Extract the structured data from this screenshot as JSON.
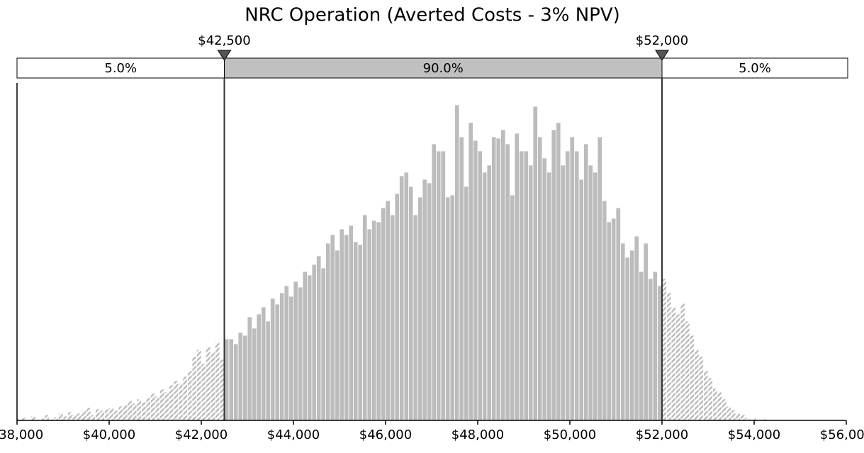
{
  "chart_data": {
    "type": "histogram",
    "title": "NRC Operation (Averted Costs - 3% NPV)",
    "bins": [
      38000,
      38100,
      38200,
      38300,
      38400,
      38500,
      38600,
      38700,
      38800,
      38900,
      39000,
      39100,
      39200,
      39300,
      39400,
      39500,
      39600,
      39700,
      39800,
      39900,
      40000,
      40100,
      40200,
      40300,
      40400,
      40500,
      40600,
      40700,
      40800,
      40900,
      41000,
      41100,
      41200,
      41300,
      41400,
      41500,
      41600,
      41700,
      41800,
      41900,
      42000,
      42100,
      42200,
      42300,
      42400,
      42500,
      42600,
      42700,
      42800,
      42900,
      43000,
      43100,
      43200,
      43300,
      43400,
      43500,
      43600,
      43700,
      43800,
      43900,
      44000,
      44100,
      44200,
      44300,
      44400,
      44500,
      44600,
      44700,
      44800,
      44900,
      45000,
      45100,
      45200,
      45300,
      45400,
      45500,
      45600,
      45700,
      45800,
      45900,
      46000,
      46100,
      46200,
      46300,
      46400,
      46500,
      46600,
      46700,
      46800,
      46900,
      47000,
      47100,
      47200,
      47300,
      47400,
      47500,
      47600,
      47700,
      47800,
      47900,
      48000,
      48100,
      48200,
      48300,
      48400,
      48500,
      48600,
      48700,
      48800,
      48900,
      49000,
      49100,
      49200,
      49300,
      49400,
      49500,
      49600,
      49700,
      49800,
      49900,
      50000,
      50100,
      50200,
      50300,
      50400,
      50500,
      50600,
      50700,
      50800,
      50900,
      51000,
      51100,
      51200,
      51300,
      51400,
      51500,
      51600,
      51700,
      51800,
      51900,
      52000,
      52100,
      52200,
      52300,
      52400,
      52500,
      52600,
      52700,
      52800,
      52900,
      53000,
      53100,
      53200,
      53300,
      53400,
      53500,
      53600,
      53700,
      53800,
      53900,
      54000,
      54100,
      54200,
      54300
    ],
    "counts": [
      2,
      4,
      1,
      6,
      0,
      3,
      8,
      2,
      5,
      10,
      6,
      12,
      8,
      10,
      14,
      18,
      8,
      16,
      14,
      16,
      18,
      14,
      20,
      22,
      28,
      24,
      30,
      26,
      32,
      38,
      34,
      44,
      40,
      50,
      56,
      52,
      62,
      70,
      90,
      100,
      80,
      104,
      96,
      110,
      86,
      115,
      115,
      108,
      124,
      120,
      146,
      130,
      150,
      160,
      140,
      172,
      164,
      180,
      190,
      175,
      196,
      188,
      210,
      205,
      220,
      232,
      215,
      250,
      262,
      240,
      270,
      262,
      275,
      252,
      248,
      290,
      270,
      282,
      280,
      300,
      310,
      290,
      320,
      345,
      350,
      330,
      290,
      315,
      340,
      335,
      390,
      380,
      380,
      315,
      318,
      445,
      400,
      330,
      420,
      395,
      380,
      350,
      360,
      400,
      398,
      410,
      390,
      318,
      405,
      380,
      380,
      360,
      443,
      400,
      370,
      350,
      410,
      420,
      360,
      380,
      400,
      380,
      340,
      390,
      360,
      350,
      400,
      310,
      280,
      285,
      300,
      250,
      230,
      240,
      260,
      210,
      250,
      200,
      210,
      190,
      200,
      180,
      160,
      150,
      165,
      140,
      120,
      100,
      90,
      70,
      60,
      45,
      40,
      30,
      20,
      15,
      10,
      8,
      4,
      2,
      3,
      1,
      2
    ],
    "color": "#bcbcbc",
    "xlim": [
      38000,
      56000
    ],
    "ylim": [
      0,
      476
    ],
    "xticks": [
      {
        "value": 38000,
        "label": "$38,000"
      },
      {
        "value": 40000,
        "label": "$40,000"
      },
      {
        "value": 42000,
        "label": "$42,000"
      },
      {
        "value": 44000,
        "label": "$44,000"
      },
      {
        "value": 46000,
        "label": "$46,000"
      },
      {
        "value": 48000,
        "label": "$48,000"
      },
      {
        "value": 50000,
        "label": "$50,000"
      },
      {
        "value": 52000,
        "label": "$52,000"
      },
      {
        "value": 54000,
        "label": "$54,000"
      },
      {
        "value": 56000,
        "label": "$56,000"
      }
    ],
    "delimiters": [
      {
        "value": 42500,
        "label": "$42,500"
      },
      {
        "value": 52000,
        "label": "$52,000"
      }
    ],
    "regions": [
      {
        "value": 5.0,
        "label": "5.0%"
      },
      {
        "value": 90.0,
        "label": "90.0%"
      },
      {
        "value": 5.0,
        "label": "5.0%"
      }
    ]
  }
}
